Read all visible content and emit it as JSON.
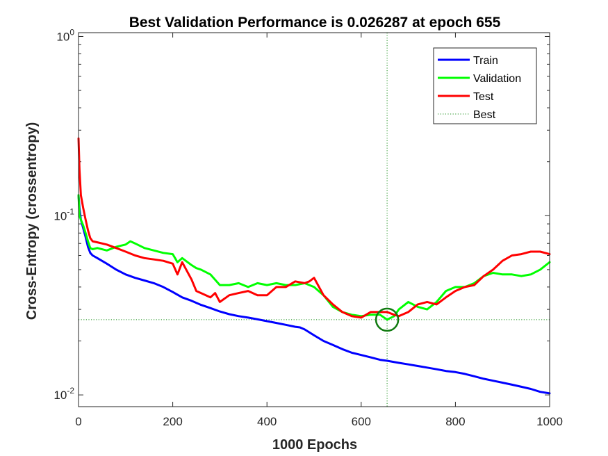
{
  "chart_data": {
    "type": "line",
    "title": "Best Validation Performance is 0.026287 at epoch 655",
    "xlabel": "1000 Epochs",
    "ylabel": "Cross-Entropy  (crossentropy)",
    "xlim": [
      0,
      1000
    ],
    "ylim": [
      0.0086,
      1.05
    ],
    "yscale": "log",
    "x_ticks": [
      0,
      200,
      400,
      600,
      800,
      1000
    ],
    "x_tick_labels": [
      "0",
      "200",
      "400",
      "600",
      "800",
      "1000"
    ],
    "y_ticks": [
      0.01,
      0.1,
      1
    ],
    "y_tick_labels": [
      {
        "base": "10",
        "exp": "-2"
      },
      {
        "base": "10",
        "exp": "-1"
      },
      {
        "base": "10",
        "exp": "0"
      }
    ],
    "best": {
      "epoch": 655,
      "value": 0.026287
    },
    "legend": {
      "position": "top-right",
      "entries": [
        "Train",
        "Validation",
        "Test",
        "Best"
      ]
    },
    "series": [
      {
        "name": "Train",
        "color": "#0000ff",
        "x": [
          0,
          2,
          5,
          10,
          15,
          20,
          25,
          30,
          40,
          60,
          80,
          100,
          120,
          140,
          160,
          180,
          200,
          220,
          240,
          260,
          280,
          300,
          320,
          340,
          360,
          380,
          400,
          420,
          440,
          460,
          470,
          480,
          500,
          520,
          540,
          560,
          580,
          600,
          620,
          640,
          655,
          680,
          700,
          720,
          740,
          760,
          780,
          800,
          820,
          840,
          860,
          880,
          900,
          920,
          940,
          960,
          980,
          1000
        ],
        "y": [
          0.13,
          0.11,
          0.095,
          0.085,
          0.076,
          0.067,
          0.062,
          0.06,
          0.058,
          0.054,
          0.05,
          0.047,
          0.045,
          0.0435,
          0.042,
          0.04,
          0.0375,
          0.035,
          0.0335,
          0.0318,
          0.0305,
          0.0292,
          0.0282,
          0.0275,
          0.027,
          0.0264,
          0.0258,
          0.0252,
          0.0246,
          0.024,
          0.0238,
          0.0232,
          0.0215,
          0.02,
          0.019,
          0.018,
          0.0172,
          0.0167,
          0.0162,
          0.0157,
          0.0155,
          0.0151,
          0.0148,
          0.0145,
          0.0142,
          0.0139,
          0.0136,
          0.0134,
          0.0131,
          0.0127,
          0.0123,
          0.012,
          0.0117,
          0.0114,
          0.0111,
          0.0108,
          0.0104,
          0.0102
        ]
      },
      {
        "name": "Validation",
        "color": "#00ff00",
        "x": [
          0,
          2,
          5,
          10,
          15,
          20,
          25,
          30,
          40,
          60,
          80,
          100,
          110,
          120,
          140,
          160,
          180,
          200,
          210,
          220,
          240,
          250,
          260,
          280,
          300,
          320,
          340,
          360,
          380,
          400,
          420,
          440,
          460,
          480,
          500,
          520,
          540,
          560,
          580,
          600,
          620,
          640,
          655,
          670,
          680,
          700,
          720,
          740,
          760,
          780,
          800,
          820,
          840,
          860,
          880,
          900,
          920,
          940,
          960,
          980,
          1000
        ],
        "y": [
          0.13,
          0.1,
          0.095,
          0.088,
          0.08,
          0.072,
          0.066,
          0.065,
          0.066,
          0.064,
          0.067,
          0.069,
          0.072,
          0.07,
          0.066,
          0.064,
          0.062,
          0.061,
          0.055,
          0.058,
          0.053,
          0.051,
          0.05,
          0.047,
          0.041,
          0.041,
          0.042,
          0.04,
          0.042,
          0.041,
          0.042,
          0.041,
          0.041,
          0.042,
          0.04,
          0.036,
          0.031,
          0.029,
          0.028,
          0.0275,
          0.028,
          0.028,
          0.0263,
          0.0275,
          0.03,
          0.033,
          0.031,
          0.03,
          0.033,
          0.038,
          0.04,
          0.04,
          0.042,
          0.046,
          0.048,
          0.047,
          0.047,
          0.046,
          0.047,
          0.05,
          0.055
        ]
      },
      {
        "name": "Test",
        "color": "#ff0000",
        "x": [
          0,
          2,
          5,
          8,
          10,
          15,
          20,
          25,
          30,
          40,
          60,
          80,
          100,
          120,
          140,
          160,
          180,
          200,
          210,
          220,
          240,
          250,
          260,
          280,
          290,
          300,
          320,
          340,
          360,
          380,
          400,
          420,
          440,
          460,
          480,
          490,
          500,
          520,
          540,
          560,
          580,
          600,
          620,
          640,
          655,
          670,
          680,
          700,
          720,
          740,
          760,
          780,
          800,
          820,
          840,
          860,
          880,
          900,
          920,
          940,
          960,
          980,
          1000
        ],
        "y": [
          0.27,
          0.18,
          0.13,
          0.118,
          0.11,
          0.095,
          0.083,
          0.075,
          0.072,
          0.071,
          0.069,
          0.066,
          0.063,
          0.06,
          0.058,
          0.057,
          0.056,
          0.054,
          0.047,
          0.055,
          0.044,
          0.038,
          0.037,
          0.035,
          0.037,
          0.033,
          0.036,
          0.037,
          0.038,
          0.036,
          0.036,
          0.04,
          0.04,
          0.043,
          0.042,
          0.043,
          0.045,
          0.036,
          0.032,
          0.029,
          0.0275,
          0.027,
          0.029,
          0.029,
          0.029,
          0.028,
          0.0275,
          0.029,
          0.032,
          0.033,
          0.032,
          0.035,
          0.038,
          0.04,
          0.041,
          0.046,
          0.05,
          0.056,
          0.06,
          0.061,
          0.063,
          0.063,
          0.061
        ]
      }
    ]
  }
}
